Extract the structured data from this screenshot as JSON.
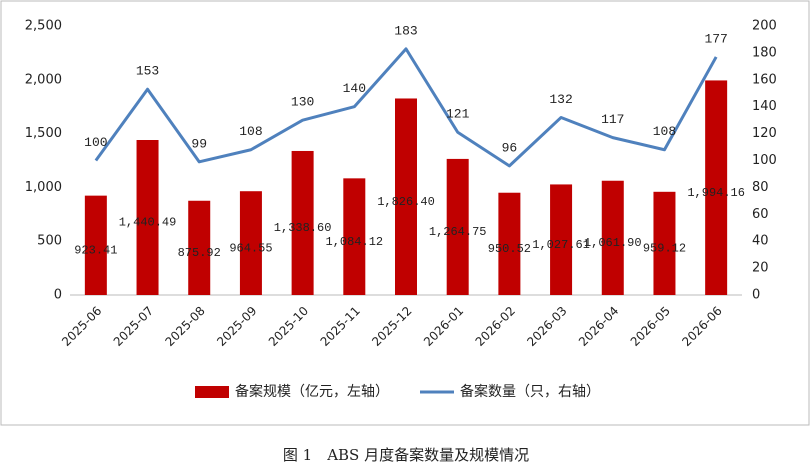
{
  "chart_data": {
    "type": "bar",
    "categories": [
      "2025-06",
      "2025-07",
      "2025-08",
      "2025-09",
      "2025-10",
      "2025-11",
      "2025-12",
      "2026-01",
      "2026-02",
      "2026-03",
      "2026-04",
      "2026-05",
      "2026-06"
    ],
    "series": [
      {
        "name": "备案规模（亿元，左轴）",
        "color": "#c00000",
        "type": "bar",
        "values": [
          923.41,
          1440.49,
          875.92,
          964.55,
          1338.6,
          1084.12,
          1826.4,
          1264.75,
          950.52,
          1027.61,
          1061.9,
          959.12,
          1994.16
        ],
        "value_labels": [
          "923.41",
          "1,440.49",
          "875.92",
          "964.55",
          "1,338.60",
          "1,084.12",
          "1,826.40",
          "1,264.75",
          "950.52",
          "1,027.61",
          "1,061.90",
          "959.12",
          "1,994.16"
        ]
      },
      {
        "name": "备案数量（只，右轴）",
        "color": "#4f81bd",
        "type": "line",
        "axis": "y2",
        "values": [
          100,
          153,
          99,
          108,
          130,
          140,
          183,
          121,
          96,
          132,
          117,
          108,
          177
        ]
      }
    ],
    "ylim": [
      0,
      2500
    ],
    "yticks": [
      0,
      500,
      {
        "value": 1000,
        "label": "1,000"
      },
      {
        "value": 1500,
        "label": "1,500"
      },
      {
        "value": 2000,
        "label": "2,000"
      },
      {
        "value": 2500,
        "label": "2,500"
      }
    ],
    "y2lim": [
      0,
      200
    ],
    "y2ticks": [
      0,
      20,
      40,
      60,
      80,
      100,
      120,
      140,
      160,
      180,
      200
    ],
    "legend": "bottom",
    "caption": "图 1　ABS 月度备案数量及规模情况"
  }
}
